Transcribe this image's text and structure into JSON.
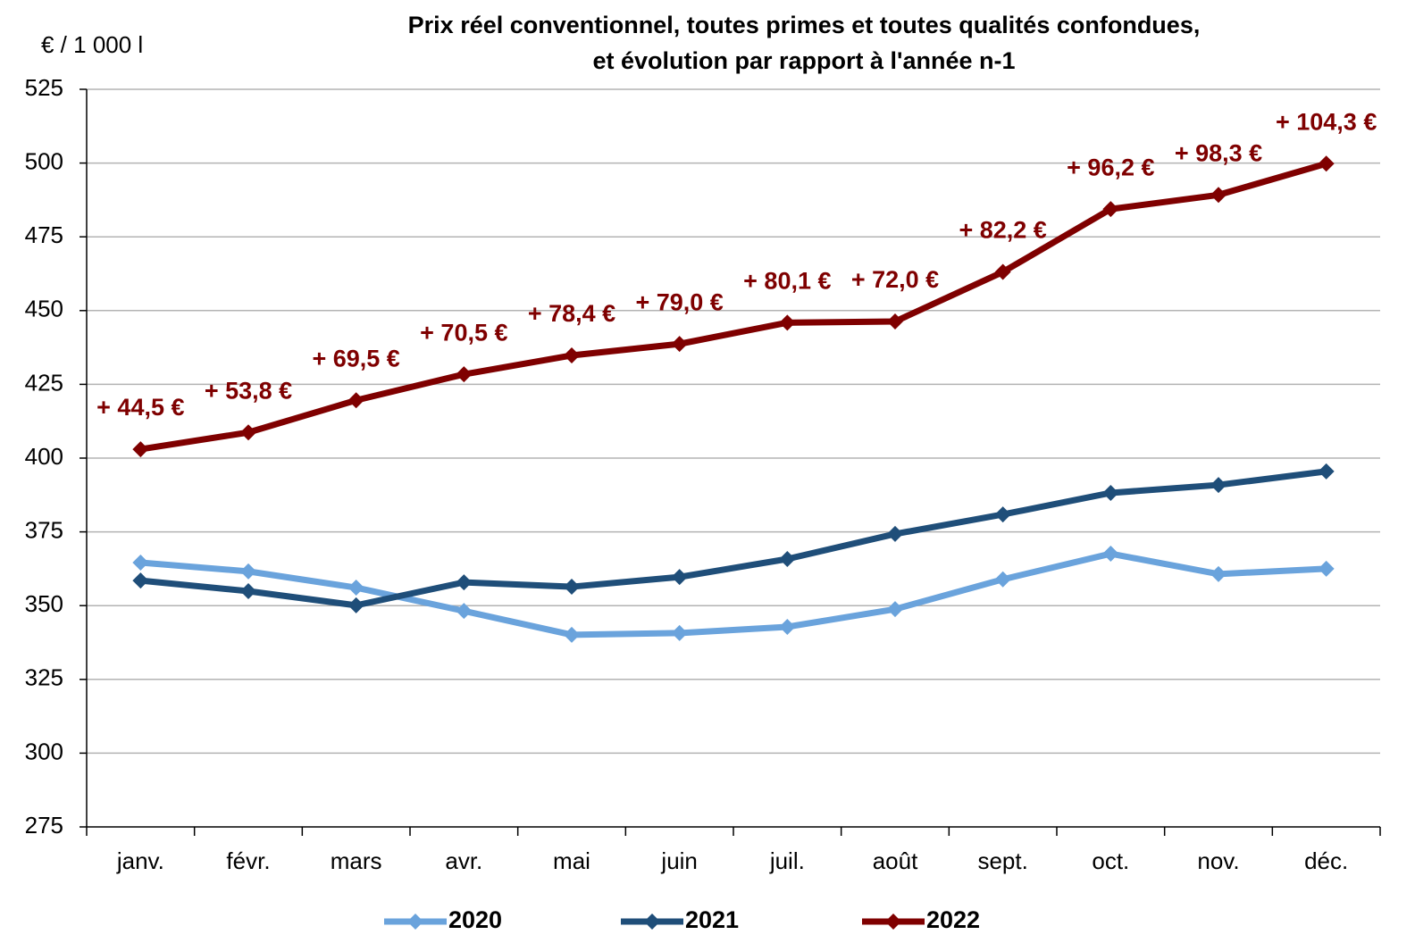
{
  "chart_data": {
    "type": "line",
    "title": [
      "Prix réel conventionnel, toutes primes et toutes qualités confondues,",
      "et évolution par rapport à l'année n-1"
    ],
    "y_label": "€ / 1 000 l",
    "categories": [
      "janv.",
      "févr.",
      "mars",
      "avr.",
      "mai",
      "juin",
      "juil.",
      "août",
      "sept.",
      "oct.",
      "nov.",
      "déc."
    ],
    "series": [
      {
        "name": "2020",
        "color": "#6aa3dc",
        "values": [
          364.6,
          361.6,
          356.1,
          348.2,
          340.1,
          340.7,
          342.8,
          348.8,
          358.9,
          367.6,
          360.7,
          362.5
        ]
      },
      {
        "name": "2021",
        "color": "#1f4e79",
        "values": [
          358.5,
          354.9,
          350.1,
          357.9,
          356.4,
          359.7,
          365.8,
          374.3,
          380.9,
          388.2,
          390.9,
          395.5
        ]
      },
      {
        "name": "2022",
        "color": "#7f0000",
        "values": [
          403.0,
          408.7,
          419.6,
          428.4,
          434.8,
          438.7,
          445.9,
          446.3,
          463.1,
          484.4,
          489.2,
          499.8
        ]
      }
    ],
    "annotations": [
      "+ 44,5 €",
      "+ 53,8 €",
      "+ 69,5 €",
      "+ 70,5 €",
      "+ 78,4 €",
      "+ 79,0 €",
      "+ 80,1 €",
      "+ 72,0 €",
      "+ 82,2 €",
      "+ 96,2 €",
      "+ 98,3 €",
      "+ 104,3 €"
    ],
    "annotation_color": "#7f0000",
    "ylim": [
      275,
      525
    ],
    "yticks": [
      275,
      300,
      325,
      350,
      375,
      400,
      425,
      450,
      475,
      500,
      525
    ],
    "grid": true,
    "legend": "bottom"
  }
}
